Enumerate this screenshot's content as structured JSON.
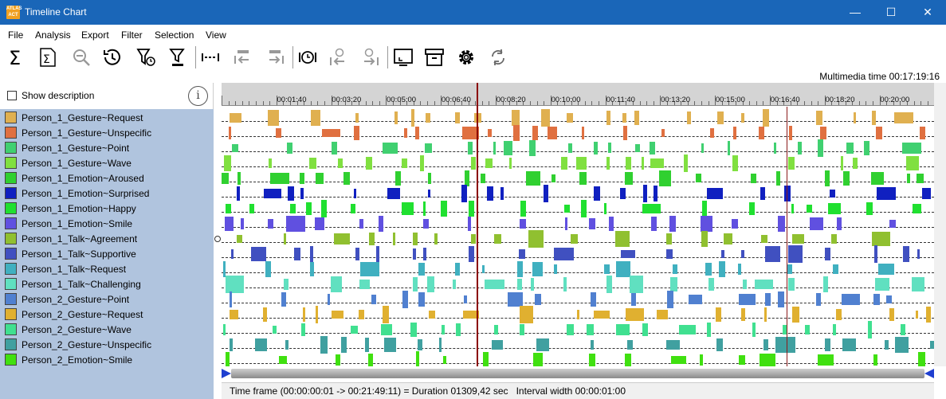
{
  "window": {
    "title": "Timeline Chart",
    "app_icon_text_top": "ATLAS",
    "app_icon_text_bottom": "ACT",
    "minimize": "—",
    "maximize": "☐",
    "close": "✕"
  },
  "menu": [
    "File",
    "Analysis",
    "Export",
    "Filter",
    "Selection",
    "View"
  ],
  "toolbar": [
    "sum-icon",
    "sum-box-icon",
    "zoom-out-icon",
    "history-icon",
    "filter-clock-icon",
    "filter-bars-icon",
    "interval-icon",
    "step-back-icon",
    "step-forward-icon",
    "clock-icon",
    "clock-back-icon",
    "clock-forward-icon",
    "screen-icon",
    "archive-icon",
    "gear-icon",
    "refresh-icon"
  ],
  "multimedia_time": "Multimedia time 00:17:19:16",
  "show_description": "Show description",
  "info_label": "i",
  "legend": [
    {
      "label": "Person_1_Gesture~Request",
      "color": "#e0b050"
    },
    {
      "label": "Person_1_Gesture~Unspecific",
      "color": "#e07040"
    },
    {
      "label": "Person_1_Gesture~Point",
      "color": "#40d070"
    },
    {
      "label": "Person_1_Gesture~Wave",
      "color": "#80e040"
    },
    {
      "label": "Person_1_Emotion~Aroused",
      "color": "#30d030"
    },
    {
      "label": "Person_1_Emotion~Surprised",
      "color": "#1020c0"
    },
    {
      "label": "Person_1_Emotion~Happy",
      "color": "#20e030"
    },
    {
      "label": "Person_1_Emotion~Smile",
      "color": "#6050e0"
    },
    {
      "label": "Person_1_Talk~Agreement",
      "color": "#90c030"
    },
    {
      "label": "Person_1_Talk~Supportive",
      "color": "#4050c0"
    },
    {
      "label": "Person_1_Talk~Request",
      "color": "#40b0c0"
    },
    {
      "label": "Person_1_Talk~Challenging",
      "color": "#60e0c0"
    },
    {
      "label": "Person_2_Gesture~Point",
      "color": "#5080d0"
    },
    {
      "label": "Person_2_Gesture~Request",
      "color": "#e0b030"
    },
    {
      "label": "Person_2_Gesture~Wave",
      "color": "#40e090"
    },
    {
      "label": "Person_2_Gesture~Unspecific",
      "color": "#40a0a0"
    },
    {
      "label": "Person_2_Emotion~Smile",
      "color": "#40e010"
    }
  ],
  "ruler_ticks": [
    "00:01:40",
    "00:03:20",
    "00:05:00",
    "00:06:40",
    "00:08:20",
    "00:10:00",
    "00:11:40",
    "00:13:20",
    "00:15:00",
    "00:16:40",
    "00:18:20",
    "00:20:00"
  ],
  "status": {
    "time_frame": "Time frame  (00:00:00:01 -> 00:21:49:11) = Duration 01309,42 sec",
    "interval_width": "Interval width 00:00:01:00"
  }
}
